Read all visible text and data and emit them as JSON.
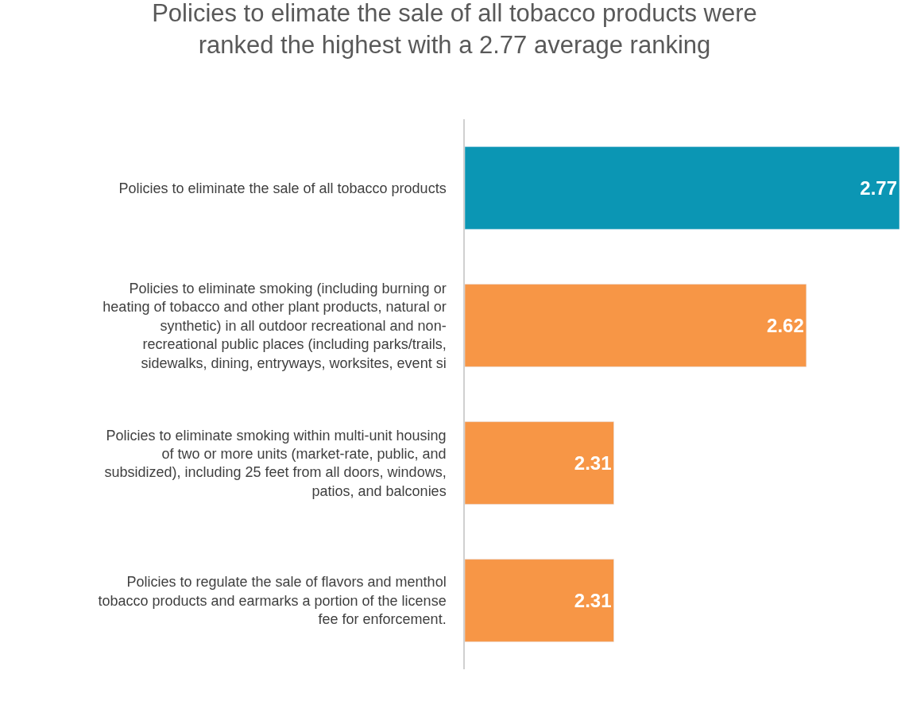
{
  "chart_data": {
    "type": "bar",
    "orientation": "horizontal",
    "title": "Policies to elimate the sale of all tobacco products were ranked the highest with a 2.77 average ranking",
    "categories": [
      "Policies to eliminate the sale of all tobacco products",
      "Policies to eliminate smoking (including burning or heating of tobacco and other plant products, natural or synthetic) in all outdoor recreational and non-recreational public places (including parks/trails, sidewalks, dining, entryways, worksites, event si",
      "Policies to eliminate smoking within multi-unit housing of two or more units (market-rate, public, and subsidized), including 25 feet from all doors, windows, patios, and balconies",
      "Policies to regulate the sale of flavors and menthol tobacco products and earmarks a portion of the license fee for enforcement."
    ],
    "values": [
      2.77,
      2.62,
      2.31,
      2.31
    ],
    "colors": [
      "#0b96b4",
      "#f79646",
      "#f79646",
      "#f79646"
    ],
    "xlim": [
      2.07,
      2.77
    ],
    "data_labels": true,
    "tick_labels": "y"
  }
}
